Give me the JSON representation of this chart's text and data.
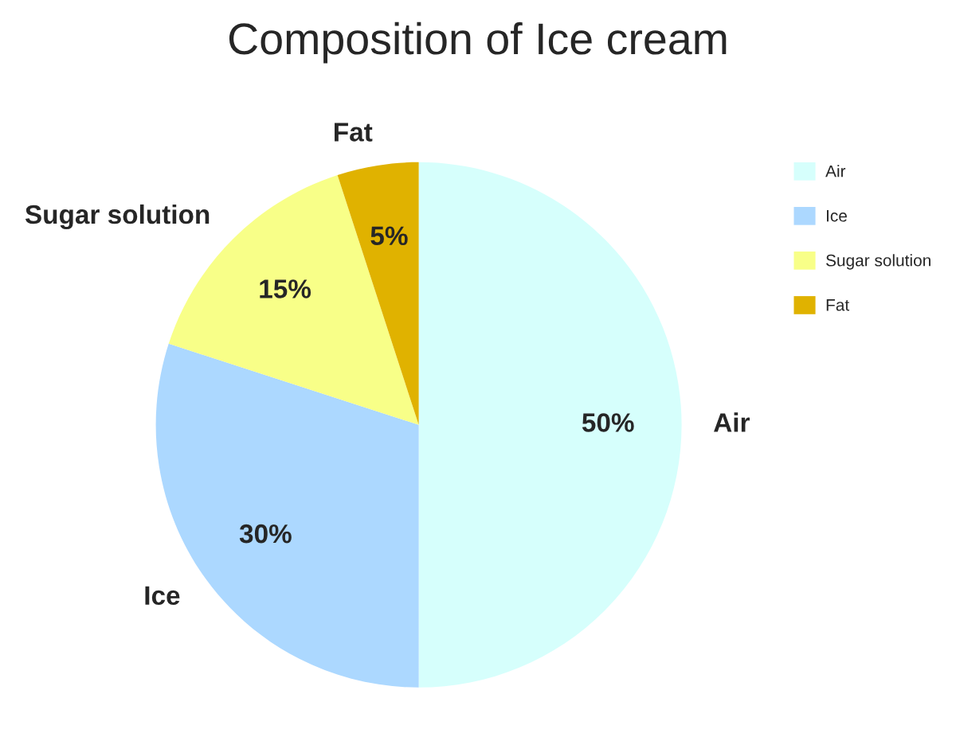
{
  "chart_data": {
    "type": "pie",
    "title": "Composition of Ice cream",
    "categories": [
      "Air",
      "Ice",
      "Sugar solution",
      "Fat"
    ],
    "values": [
      50,
      30,
      15,
      5
    ],
    "value_labels": [
      "50%",
      "30%",
      "15%",
      "5%"
    ],
    "colors": [
      "#d6fffc",
      "#acd8ff",
      "#f8ff88",
      "#e0b200"
    ],
    "legend": "top right"
  }
}
